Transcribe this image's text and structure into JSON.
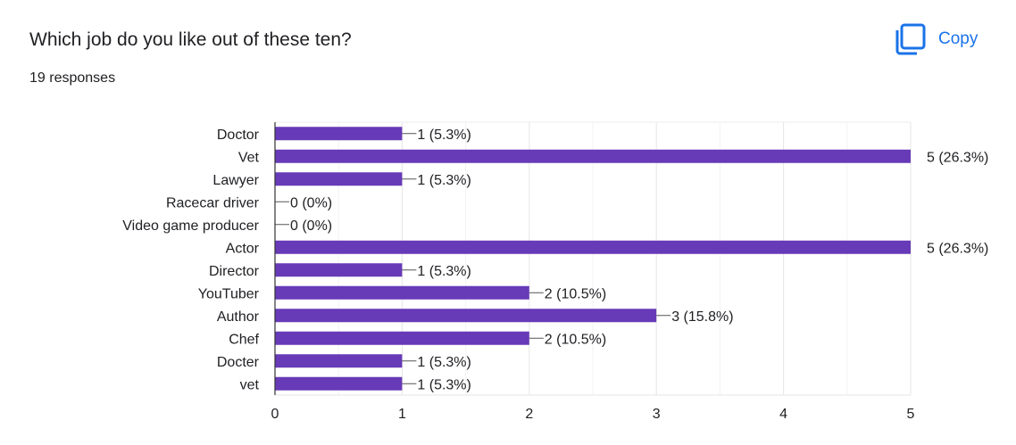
{
  "title": "Which job do you like out of these ten?",
  "responses": "19 responses",
  "copy_button": {
    "label": "Copy",
    "icon": "copy-icon"
  },
  "colors": {
    "bar": "#673ab7",
    "accent": "#1a73e8",
    "grid": "#eeeeee",
    "axis": "#333333",
    "text": "#202124"
  },
  "chart_data": {
    "type": "bar",
    "orientation": "horizontal",
    "categories": [
      "Doctor",
      "Vet",
      "Lawyer",
      "Racecar driver",
      "Video game producer",
      "Actor",
      "Director",
      "YouTuber",
      "Author",
      "Chef",
      "Docter",
      "vet"
    ],
    "values": [
      1,
      5,
      1,
      0,
      0,
      5,
      1,
      2,
      3,
      2,
      1,
      1
    ],
    "data_labels": [
      "1 (5.3%)",
      "5 (26.3%)",
      "1 (5.3%)",
      "0 (0%)",
      "0 (0%)",
      "5 (26.3%)",
      "1 (5.3%)",
      "2 (10.5%)",
      "3 (15.8%)",
      "2 (10.5%)",
      "1 (5.3%)",
      "1 (5.3%)"
    ],
    "x_ticks": [
      "0",
      "1",
      "2",
      "3",
      "4",
      "5"
    ],
    "xlim": [
      0,
      5
    ],
    "grid": true
  }
}
